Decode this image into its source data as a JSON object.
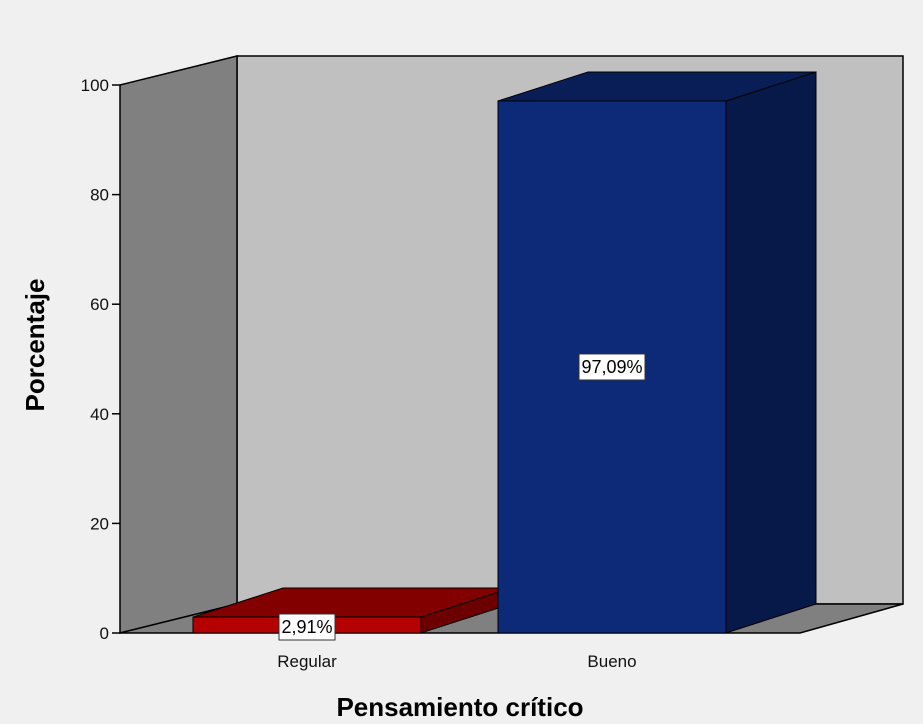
{
  "chart_data": {
    "type": "bar",
    "style": "3d",
    "categories": [
      "Regular",
      "Bueno"
    ],
    "values": [
      2.91,
      97.09
    ],
    "data_labels": [
      "2,91%",
      "97,09%"
    ],
    "colors": [
      "#b40000",
      "#0c2a78"
    ],
    "xlabel": "Pensamiento crítico",
    "ylabel": "Porcentaje",
    "ylim": [
      0,
      100
    ],
    "yticks": [
      0,
      20,
      40,
      60,
      80,
      100
    ],
    "ytick_labels": [
      "0",
      "20",
      "40",
      "60",
      "80",
      "100"
    ],
    "grid": false,
    "legend": "none"
  },
  "colors": {
    "background": "#f0f0f0",
    "back_wall": "#c0c0c0",
    "side_wall": "#808080",
    "floor": "#808080"
  }
}
